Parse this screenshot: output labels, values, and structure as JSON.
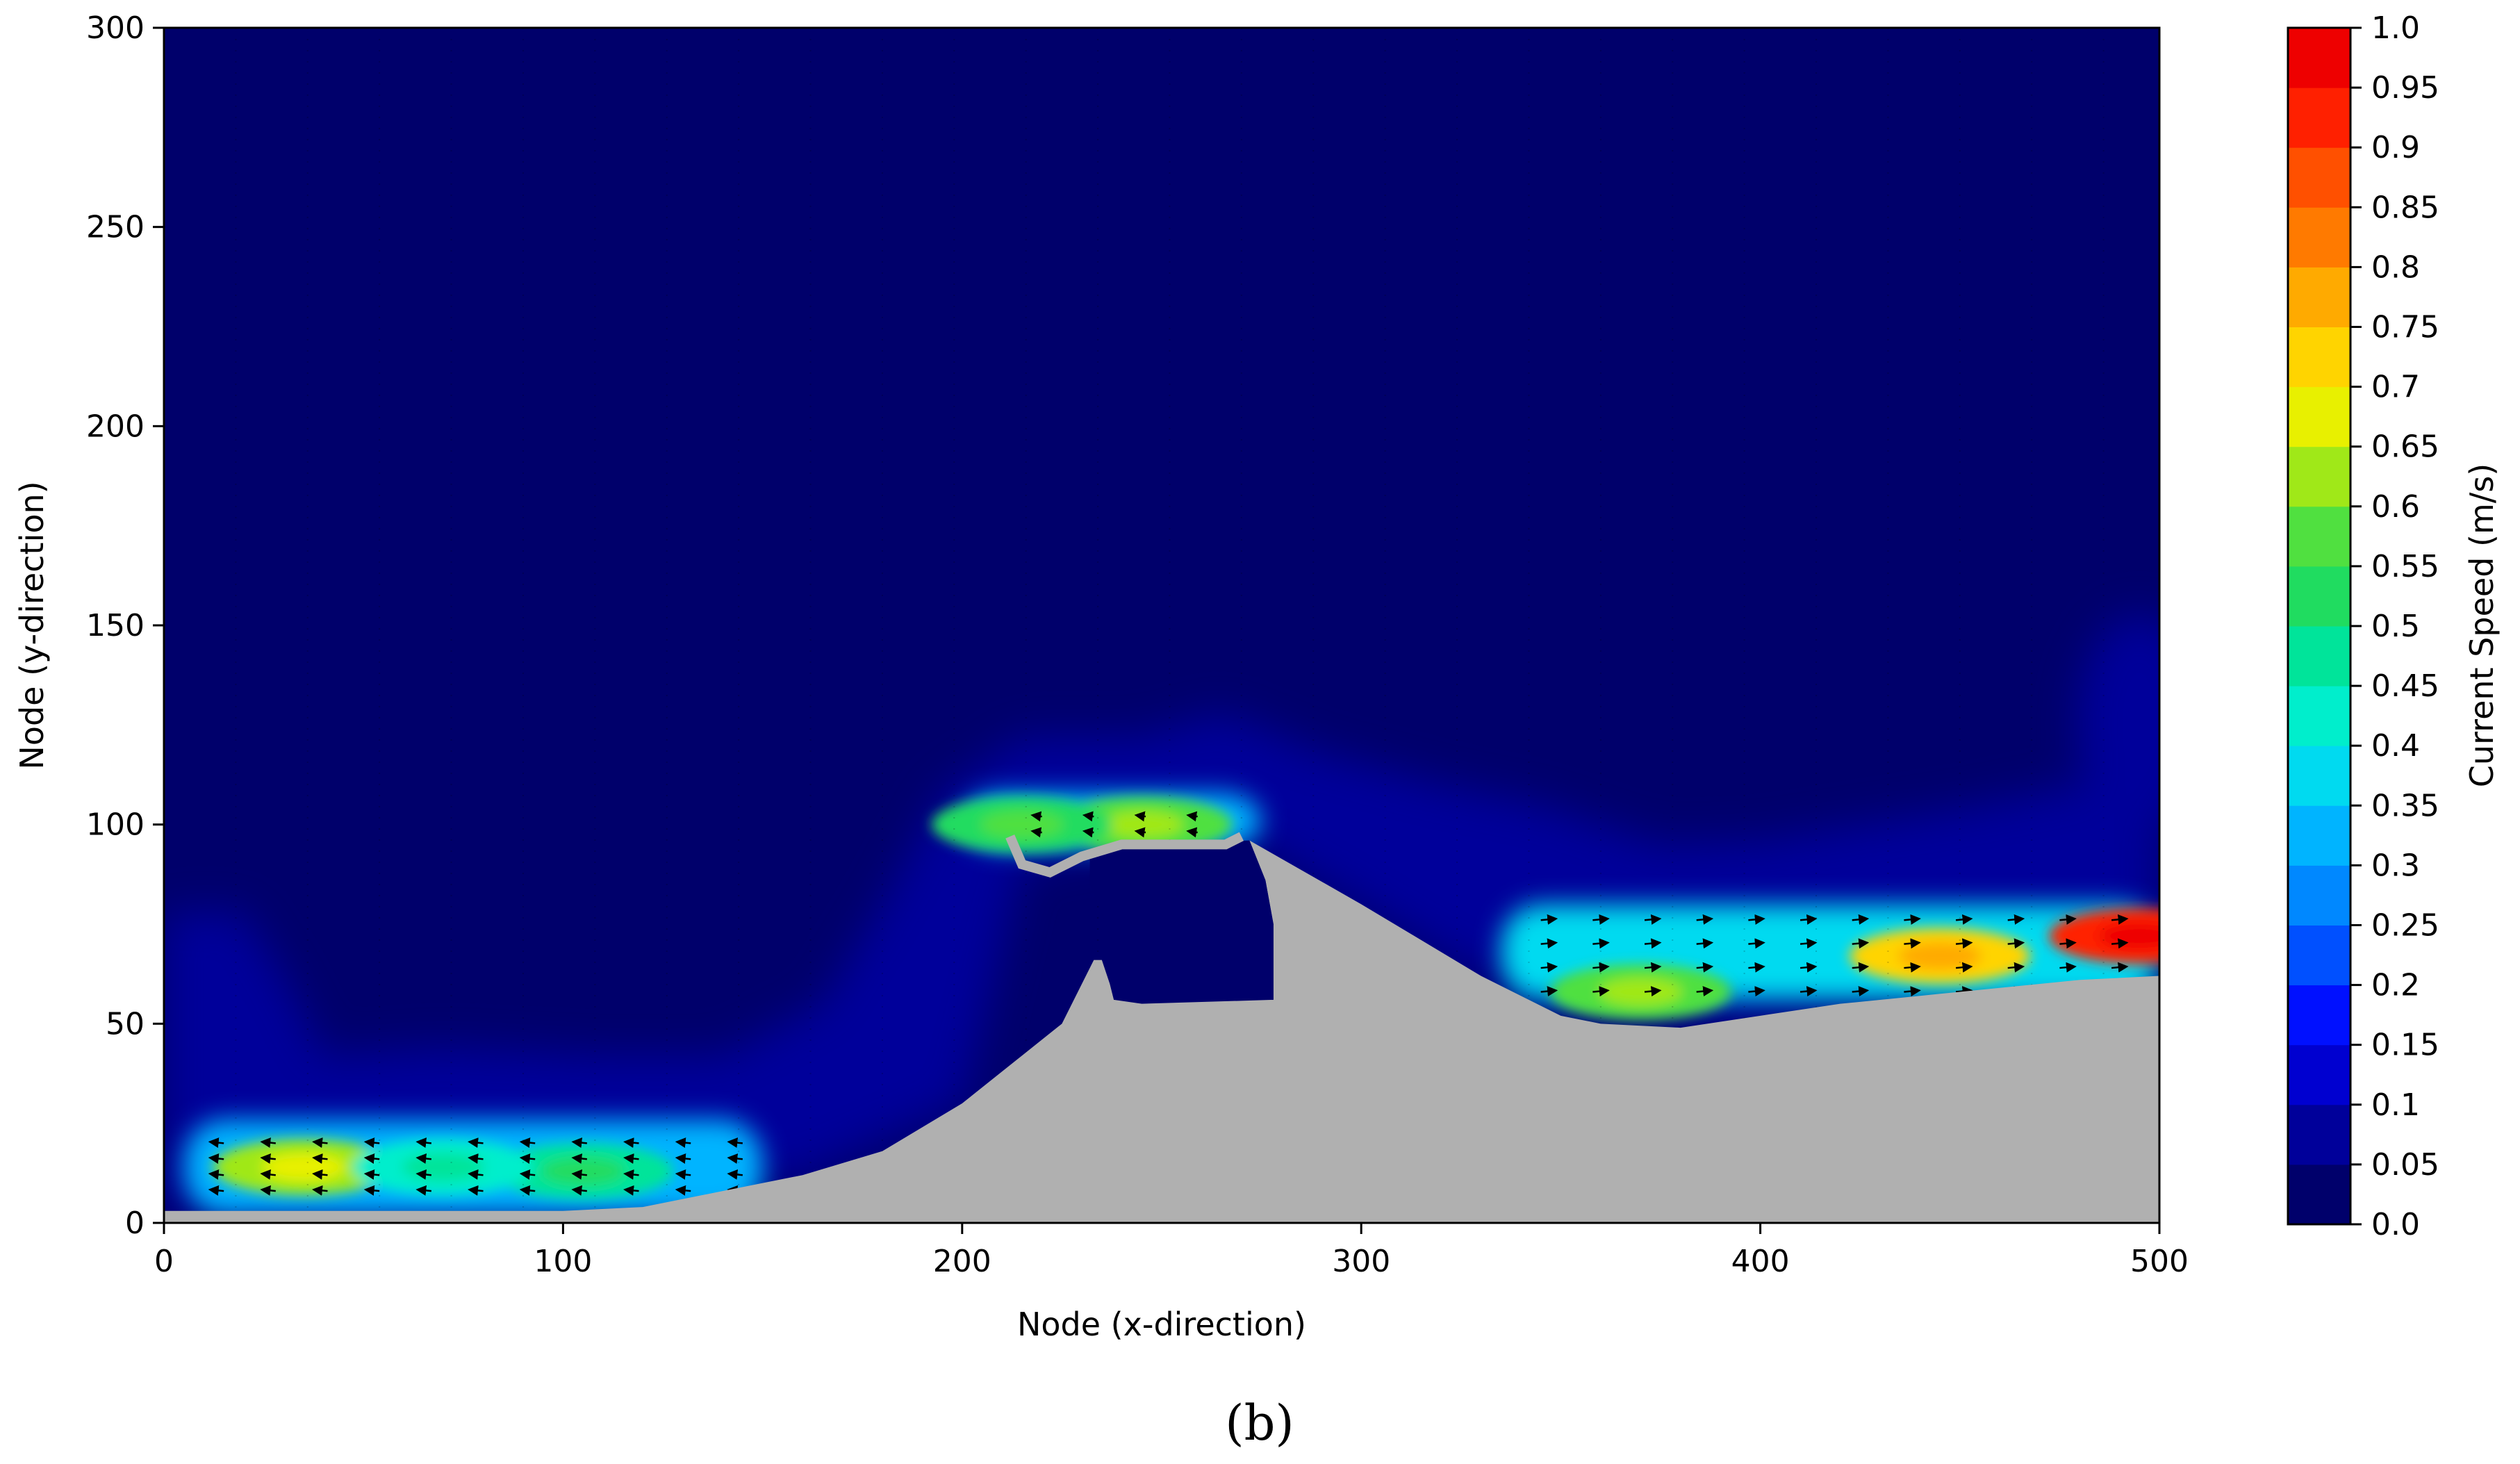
{
  "chart_data": {
    "type": "heatmap",
    "xlabel": "Node (x-direction)",
    "ylabel": "Node (y-direction)",
    "xlim": [
      0,
      500
    ],
    "ylim": [
      0,
      300
    ],
    "x_ticks": [
      "0",
      "100",
      "200",
      "300",
      "400",
      "500"
    ],
    "y_ticks": [
      "0",
      "50",
      "100",
      "150",
      "200",
      "250",
      "300"
    ],
    "colorbar": {
      "label": "Current Speed (m/s)",
      "range": [
        0.0,
        1.0
      ],
      "ticks": [
        "0.0",
        "0.05",
        "0.1",
        "0.15",
        "0.2",
        "0.25",
        "0.3",
        "0.35",
        "0.4",
        "0.45",
        "0.5",
        "0.55",
        "0.6",
        "0.65",
        "0.7",
        "0.75",
        "0.8",
        "0.85",
        "0.9",
        "0.95",
        "1.0"
      ],
      "colors": [
        "#00006b",
        "#00009a",
        "#0000d0",
        "#0010ff",
        "#0050ff",
        "#0088ff",
        "#00b4ff",
        "#00daf0",
        "#00eecc",
        "#00e49a",
        "#20dc60",
        "#50e040",
        "#a0e818",
        "#e8f000",
        "#ffd400",
        "#ffaa00",
        "#ff7a00",
        "#ff5000",
        "#ff2000",
        "#ee0000",
        "#aa0000"
      ]
    },
    "land_color": "#b0b0b0",
    "land_boundary": [
      [
        0,
        3
      ],
      [
        30,
        3
      ],
      [
        60,
        3
      ],
      [
        100,
        3
      ],
      [
        120,
        4
      ],
      [
        140,
        8
      ],
      [
        160,
        12
      ],
      [
        180,
        18
      ],
      [
        200,
        30
      ],
      [
        215,
        42
      ],
      [
        225,
        50
      ],
      [
        230,
        60
      ],
      [
        233,
        66
      ],
      [
        235,
        66
      ],
      [
        237,
        60
      ],
      [
        238,
        56
      ],
      [
        245,
        55
      ],
      [
        278,
        56
      ],
      [
        278,
        75
      ],
      [
        276,
        86
      ],
      [
        272,
        96
      ],
      [
        300,
        80
      ],
      [
        330,
        62
      ],
      [
        350,
        52
      ],
      [
        360,
        50
      ],
      [
        380,
        49
      ],
      [
        400,
        52
      ],
      [
        420,
        55
      ],
      [
        440,
        57
      ],
      [
        460,
        59
      ],
      [
        480,
        61
      ],
      [
        500,
        62
      ],
      [
        500,
        0
      ],
      [
        0,
        0
      ]
    ],
    "breakwater": [
      [
        212,
        97
      ],
      [
        215,
        90
      ],
      [
        222,
        88
      ],
      [
        230,
        92
      ],
      [
        240,
        95
      ],
      [
        266,
        95
      ],
      [
        270,
        97
      ]
    ],
    "speed_field": [
      {
        "x": 35,
        "y": 14,
        "speed": 0.62
      },
      {
        "x": 105,
        "y": 13,
        "speed": 0.45
      },
      {
        "x": 70,
        "y": 14,
        "speed": 0.42
      },
      {
        "x": 245,
        "y": 100,
        "speed": 0.55
      },
      {
        "x": 215,
        "y": 100,
        "speed": 0.5
      },
      {
        "x": 370,
        "y": 58,
        "speed": 0.55
      },
      {
        "x": 445,
        "y": 67,
        "speed": 0.72
      },
      {
        "x": 495,
        "y": 72,
        "speed": 0.9
      }
    ]
  },
  "panel_label": "(b)"
}
